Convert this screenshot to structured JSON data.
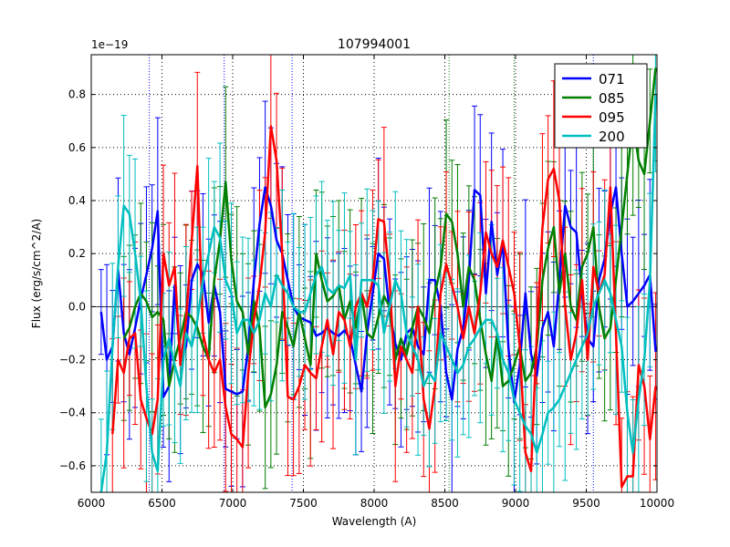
{
  "chart_data": {
    "type": "line",
    "title": "107994001",
    "xlabel": "Wavelength (A)",
    "ylabel": "Flux (erg/s/cm^2/A)",
    "y_scale_label": "1e−19",
    "xlim": [
      6000,
      10000
    ],
    "ylim": [
      -0.7,
      0.95
    ],
    "x_ticks": [
      6000,
      6500,
      7000,
      7500,
      8000,
      8500,
      9000,
      9500,
      10000
    ],
    "x_tick_labels": [
      "6000",
      "6500",
      "7000",
      "7500",
      "8000",
      "8500",
      "9000",
      "9500",
      "10000"
    ],
    "y_ticks": [
      -0.6,
      -0.4,
      -0.2,
      0.0,
      0.2,
      0.4,
      0.6,
      0.8
    ],
    "y_tick_labels": [
      "−0.6",
      "−0.4",
      "−0.2",
      "0.0",
      "0.2",
      "0.4",
      "0.6",
      "0.8"
    ],
    "grid": true,
    "legend_position": "top-right",
    "reference_lines_x": [
      6410,
      6940,
      7420,
      8530,
      8990,
      9550
    ],
    "series": [
      {
        "name": "071",
        "color": "#0000ff",
        "x": [
          6070,
          6110,
          6150,
          6190,
          6230,
          6270,
          6310,
          6350,
          6390,
          6430,
          6470,
          6510,
          6550,
          6590,
          6630,
          6670,
          6710,
          6750,
          6790,
          6830,
          6870,
          6910,
          6950,
          6990,
          7030,
          7070,
          7110,
          7150,
          7190,
          7230,
          7270,
          7310,
          7350,
          7390,
          7430,
          7470,
          7510,
          7550,
          7590,
          7630,
          7670,
          7710,
          7750,
          7790,
          7830,
          7870,
          7910,
          7950,
          7990,
          8030,
          8070,
          8110,
          8150,
          8190,
          8230,
          8270,
          8310,
          8350,
          8390,
          8430,
          8470,
          8510,
          8550,
          8590,
          8630,
          8670,
          8710,
          8750,
          8790,
          8830,
          8870,
          8910,
          8950,
          8990,
          9030,
          9070,
          9110,
          9150,
          9190,
          9230,
          9270,
          9310,
          9350,
          9390,
          9430,
          9470,
          9510,
          9550,
          9590,
          9630,
          9670,
          9710,
          9750,
          9790,
          9830,
          9870,
          9910,
          9950,
          9990
        ],
        "values": [
          -0.02,
          -0.2,
          -0.15,
          0.14,
          -0.1,
          -0.18,
          -0.08,
          0.03,
          0.12,
          0.22,
          0.36,
          -0.34,
          -0.3,
          0.08,
          -0.2,
          -0.15,
          0.1,
          0.16,
          0.12,
          -0.06,
          0.08,
          -0.02,
          -0.31,
          -0.32,
          -0.33,
          -0.32,
          -0.15,
          0.1,
          0.31,
          0.45,
          0.38,
          0.25,
          0.2,
          0.1,
          0.0,
          -0.04,
          -0.05,
          -0.06,
          -0.11,
          -0.1,
          -0.08,
          -0.1,
          -0.11,
          -0.09,
          -0.12,
          -0.22,
          -0.32,
          -0.1,
          0.05,
          0.2,
          0.18,
          -0.02,
          -0.14,
          -0.2,
          -0.1,
          -0.08,
          -0.15,
          -0.18,
          0.1,
          0.1,
          0.0,
          -0.25,
          -0.35,
          -0.16,
          -0.08,
          0.1,
          0.44,
          0.42,
          0.05,
          0.32,
          0.12,
          0.24,
          -0.16,
          -0.36,
          -0.22,
          0.05,
          -0.18,
          -0.26,
          -0.08,
          -0.02,
          -0.15,
          0.1,
          0.38,
          0.3,
          0.28,
          0.05,
          -0.12,
          -0.15,
          0.1,
          0.18,
          0.35,
          0.45,
          0.2,
          0.0,
          0.02,
          0.05,
          0.08,
          0.12,
          -0.17
        ]
      },
      {
        "name": "085",
        "color": "#007f00",
        "x": [
          6230,
          6270,
          6310,
          6350,
          6390,
          6430,
          6470,
          6510,
          6550,
          6590,
          6630,
          6670,
          6710,
          6750,
          6790,
          6830,
          6870,
          6910,
          6950,
          6990,
          7030,
          7070,
          7110,
          7150,
          7190,
          7230,
          7270,
          7310,
          7350,
          7390,
          7430,
          7470,
          7510,
          7550,
          7590,
          7630,
          7670,
          7710,
          7750,
          7790,
          7830,
          7870,
          7910,
          7950,
          7990,
          8030,
          8070,
          8110,
          8150,
          8190,
          8230,
          8270,
          8310,
          8350,
          8390,
          8430,
          8470,
          8510,
          8550,
          8590,
          8630,
          8670,
          8710,
          8750,
          8790,
          8830,
          8870,
          8910,
          8950,
          8990,
          9030,
          9070,
          9110,
          9150,
          9190,
          9230,
          9270,
          9310,
          9350,
          9390,
          9430,
          9470,
          9510,
          9550,
          9590,
          9630,
          9670,
          9710,
          9750,
          9790,
          9830,
          9870,
          9910,
          9950,
          9990
        ],
        "values": [
          -0.12,
          -0.08,
          0.0,
          0.05,
          0.02,
          -0.04,
          -0.02,
          -0.05,
          -0.3,
          -0.2,
          -0.12,
          -0.02,
          -0.04,
          -0.08,
          -0.15,
          -0.2,
          0.1,
          0.25,
          0.47,
          0.18,
          0.02,
          -0.02,
          -0.18,
          0.02,
          -0.08,
          -0.38,
          -0.33,
          -0.22,
          -0.02,
          -0.08,
          -0.15,
          -0.02,
          -0.12,
          -0.22,
          0.2,
          0.1,
          0.02,
          0.04,
          0.08,
          -0.05,
          0.02,
          -0.08,
          0.05,
          -0.1,
          -0.12,
          -0.04,
          0.04,
          0.0,
          -0.2,
          -0.12,
          -0.18,
          -0.08,
          0.0,
          -0.04,
          -0.1,
          0.05,
          0.15,
          0.35,
          0.32,
          0.2,
          0.0,
          0.15,
          0.1,
          -0.05,
          -0.18,
          -0.28,
          -0.1,
          -0.3,
          -0.28,
          -0.22,
          -0.15,
          -0.28,
          -0.25,
          -0.15,
          0.1,
          0.22,
          0.3,
          0.05,
          0.2,
          0.0,
          -0.05,
          0.15,
          0.2,
          0.3,
          0.0,
          -0.12,
          -0.08,
          0.1,
          0.3,
          0.5,
          0.7,
          0.55,
          0.5,
          0.7,
          0.9
        ]
      },
      {
        "name": "095",
        "color": "#ff0000",
        "x": [
          6150,
          6190,
          6230,
          6270,
          6310,
          6350,
          6390,
          6430,
          6470,
          6510,
          6550,
          6590,
          6630,
          6670,
          6710,
          6750,
          6790,
          6830,
          6870,
          6910,
          6950,
          6990,
          7030,
          7070,
          7110,
          7150,
          7190,
          7230,
          7270,
          7310,
          7350,
          7390,
          7430,
          7470,
          7510,
          7550,
          7590,
          7630,
          7670,
          7710,
          7750,
          7790,
          7830,
          7870,
          7910,
          7950,
          7990,
          8030,
          8070,
          8110,
          8150,
          8190,
          8230,
          8270,
          8310,
          8350,
          8390,
          8430,
          8470,
          8510,
          8550,
          8590,
          8630,
          8670,
          8710,
          8750,
          8790,
          8830,
          8870,
          8910,
          8950,
          8990,
          9030,
          9070,
          9110,
          9150,
          9190,
          9230,
          9270,
          9310,
          9350,
          9390,
          9430,
          9470,
          9510,
          9550,
          9590,
          9630,
          9670,
          9710,
          9750,
          9790,
          9830,
          9870,
          9910,
          9950,
          9990
        ],
        "values": [
          -0.48,
          -0.2,
          -0.25,
          -0.12,
          -0.1,
          -0.35,
          -0.42,
          -0.48,
          -0.35,
          0.2,
          0.08,
          0.15,
          -0.22,
          -0.05,
          0.25,
          0.53,
          -0.1,
          -0.2,
          -0.25,
          -0.2,
          -0.38,
          -0.48,
          -0.5,
          -0.53,
          -0.25,
          -0.05,
          0.08,
          0.28,
          0.68,
          0.55,
          0.2,
          -0.34,
          -0.35,
          -0.3,
          -0.22,
          -0.25,
          -0.27,
          -0.15,
          -0.05,
          -0.18,
          -0.02,
          -0.05,
          -0.15,
          0.0,
          0.05,
          0.0,
          0.1,
          0.33,
          0.32,
          0.1,
          -0.3,
          -0.15,
          -0.2,
          -0.25,
          0.0,
          -0.35,
          -0.46,
          -0.3,
          0.05,
          0.16,
          0.08,
          0.0,
          -0.12,
          0.0,
          -0.1,
          0.05,
          0.28,
          0.2,
          0.15,
          0.25,
          0.15,
          0.05,
          -0.15,
          -0.55,
          -0.62,
          -0.1,
          0.3,
          0.48,
          0.52,
          0.4,
          0.0,
          -0.2,
          -0.1,
          0.1,
          -0.2,
          0.15,
          0.05,
          0.12,
          0.45,
          -0.1,
          -0.68,
          -0.64,
          -0.64,
          -0.22,
          -0.3,
          -0.5,
          -0.3
        ]
      },
      {
        "name": "200",
        "color": "#00bfbf",
        "x": [
          6070,
          6110,
          6150,
          6190,
          6230,
          6270,
          6310,
          6350,
          6390,
          6430,
          6470,
          6510,
          6550,
          6590,
          6630,
          6670,
          6710,
          6750,
          6790,
          6830,
          6870,
          6910,
          6950,
          6990,
          7030,
          7070,
          7110,
          7150,
          7190,
          7230,
          7270,
          7310,
          7350,
          7390,
          7430,
          7470,
          7510,
          7550,
          7590,
          7630,
          7670,
          7710,
          7750,
          7790,
          7830,
          7870,
          7910,
          7950,
          7990,
          8030,
          8070,
          8110,
          8150,
          8190,
          8230,
          8270,
          8310,
          8350,
          8390,
          8430,
          8470,
          8510,
          8550,
          8590,
          8630,
          8670,
          8710,
          8750,
          8790,
          8830,
          8870,
          8910,
          8950,
          8990,
          9030,
          9070,
          9110,
          9150,
          9190,
          9230,
          9270,
          9310,
          9350,
          9390,
          9430,
          9470,
          9510,
          9550,
          9590,
          9630,
          9670,
          9710,
          9750,
          9790,
          9830,
          9870,
          9910,
          9950,
          9990
        ],
        "values": [
          -0.7,
          -0.55,
          -0.15,
          0.15,
          0.38,
          0.35,
          0.2,
          0.02,
          -0.3,
          -0.55,
          -0.62,
          -0.2,
          -0.12,
          -0.22,
          -0.3,
          -0.1,
          -0.15,
          -0.05,
          0.1,
          0.2,
          0.3,
          0.26,
          0.1,
          0.05,
          -0.1,
          -0.05,
          -0.05,
          -0.1,
          -0.05,
          0.05,
          0.0,
          0.12,
          0.08,
          0.05,
          0.0,
          -0.02,
          -0.02,
          0.05,
          0.12,
          0.15,
          0.07,
          0.05,
          0.08,
          0.07,
          0.12,
          -0.2,
          0.1,
          0.1,
          0.1,
          0.08,
          -0.1,
          0.0,
          0.1,
          0.05,
          -0.1,
          -0.15,
          -0.2,
          -0.3,
          -0.25,
          -0.28,
          -0.1,
          -0.15,
          -0.2,
          -0.25,
          -0.22,
          -0.15,
          -0.12,
          -0.08,
          -0.05,
          -0.05,
          -0.1,
          -0.2,
          -0.25,
          -0.35,
          -0.4,
          -0.45,
          -0.48,
          -0.55,
          -0.48,
          -0.4,
          -0.38,
          -0.35,
          -0.3,
          -0.25,
          -0.2,
          -0.15,
          -0.1,
          0.0,
          0.05,
          0.1,
          0.05,
          -0.05,
          -0.15,
          -0.4,
          -0.55,
          -0.35,
          -0.2,
          0.1,
          0.8
        ]
      }
    ]
  }
}
